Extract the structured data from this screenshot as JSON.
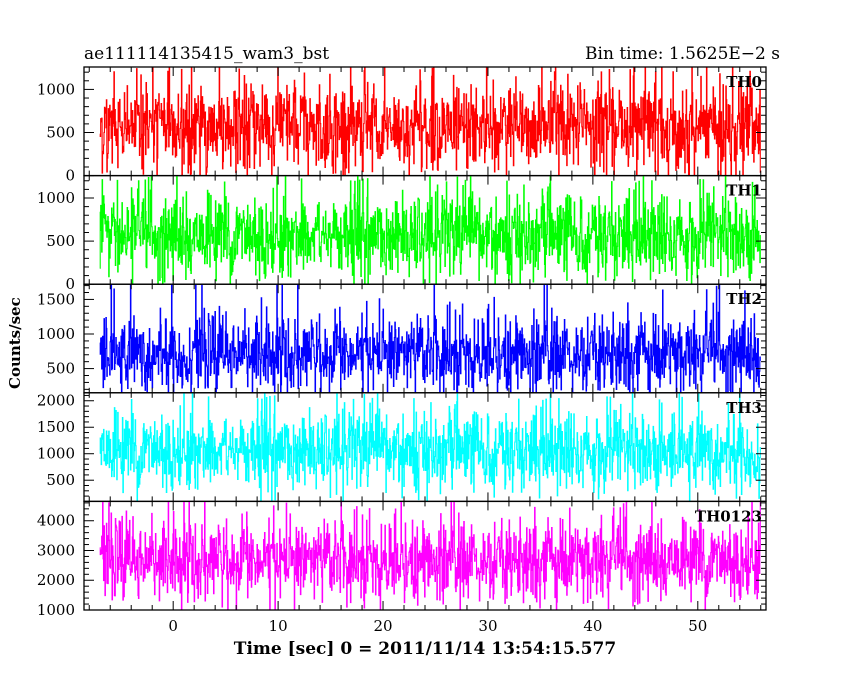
{
  "header": {
    "source": "ae111114135415_wam3_bst",
    "bin_time": "Bin time: 1.5625E−2 s"
  },
  "chart_data": {
    "type": "line",
    "xlabel": "Time [sec] 0 = 2011/11/14 13:54:15.577",
    "ylabel": "Counts/sec",
    "xlim": [
      -8.5,
      56.5
    ],
    "x_ticks": [
      0,
      10,
      20,
      30,
      40,
      50
    ],
    "x_tick_labels": [
      "0",
      "10",
      "20",
      "30",
      "40",
      "50"
    ],
    "x_start": -7.0,
    "x_end": 56.0,
    "bin_time": 0.015625,
    "grid": false,
    "panels": [
      {
        "name": "TH0",
        "color": "#ff0000",
        "ylim": [
          0,
          1260
        ],
        "yticks": [
          0,
          500,
          1000
        ],
        "ytick_labels": [
          "0",
          "500",
          "1000"
        ],
        "mean": 560,
        "low_p5": 150,
        "high_p95": 1000,
        "max": 1260,
        "min": 0
      },
      {
        "name": "TH1",
        "color": "#00ff00",
        "ylim": [
          0,
          1260
        ],
        "yticks": [
          0,
          500,
          1000
        ],
        "ytick_labels": [
          "0",
          "500",
          "1000"
        ],
        "mean": 560,
        "low_p5": 150,
        "high_p95": 1000,
        "max": 1260,
        "min": 0
      },
      {
        "name": "TH2",
        "color": "#0000ff",
        "ylim": [
          150,
          1720
        ],
        "yticks": [
          500,
          1000,
          1500
        ],
        "ytick_labels": [
          "500",
          "1000",
          "1500"
        ],
        "mean": 720,
        "low_p5": 250,
        "high_p95": 1200,
        "max": 1720,
        "min": 150
      },
      {
        "name": "TH3",
        "color": "#00ffff",
        "ylim": [
          100,
          2150
        ],
        "yticks": [
          500,
          1000,
          1500,
          2000
        ],
        "ytick_labels": [
          "500",
          "1000",
          "1500",
          "2000"
        ],
        "mean": 1060,
        "low_p5": 400,
        "high_p95": 1700,
        "max": 2150,
        "min": 100
      },
      {
        "name": "TH0123",
        "color": "#ff00ff",
        "ylim": [
          1000,
          4650
        ],
        "yticks": [
          1000,
          2000,
          3000,
          4000
        ],
        "ytick_labels": [
          "1000",
          "2000",
          "3000",
          "4000"
        ],
        "mean": 2680,
        "low_p5": 1500,
        "high_p95": 3800,
        "max": 4650,
        "min": 1000
      }
    ]
  }
}
